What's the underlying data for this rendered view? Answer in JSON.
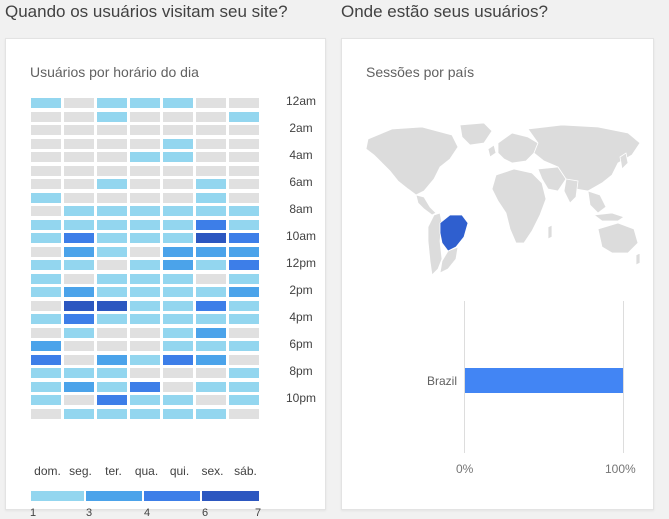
{
  "left_section": {
    "title": "Quando os usuários visitam seu site?",
    "card_title": "Usuários por horário do dia",
    "hour_labels": [
      "12am",
      "2am",
      "4am",
      "6am",
      "8am",
      "10am",
      "12pm",
      "2pm",
      "4pm",
      "6pm",
      "8pm",
      "10pm"
    ],
    "day_labels": [
      "dom.",
      "seg.",
      "ter.",
      "qua.",
      "qui.",
      "sex.",
      "sáb."
    ],
    "legend": [
      "1",
      "3",
      "4",
      "6",
      "7"
    ],
    "colors": {
      "empty": "#e0e0e0",
      "level1": "#93d6ef",
      "level2": "#4ba3ea",
      "level3": "#3d7ee8",
      "level4": "#2c57c0"
    }
  },
  "right_section": {
    "title": "Onde estão seus usuários?",
    "card_title": "Sessões por país",
    "bar_country": "Brazil",
    "x_ticks": [
      "0%",
      "100%"
    ],
    "highlight_color": "#2f5fcf",
    "land_color": "#dcdcdc"
  },
  "chart_data": [
    {
      "type": "heatmap",
      "title": "Usuários por horário do dia",
      "columns": [
        "dom.",
        "seg.",
        "ter.",
        "qua.",
        "qui.",
        "sex.",
        "sáb."
      ],
      "rows_hour_labels": [
        "12am",
        "2am",
        "4am",
        "6am",
        "8am",
        "10am",
        "12pm",
        "2pm",
        "4pm",
        "6pm",
        "8pm",
        "10pm"
      ],
      "rows_per_hour": 24,
      "legend_scale": [
        1,
        3,
        4,
        6,
        7
      ],
      "levels": [
        [
          1,
          0,
          1,
          1,
          1,
          0,
          0
        ],
        [
          0,
          0,
          1,
          0,
          0,
          0,
          1
        ],
        [
          0,
          0,
          0,
          0,
          0,
          0,
          0
        ],
        [
          0,
          0,
          0,
          0,
          1,
          0,
          0
        ],
        [
          0,
          0,
          0,
          1,
          1,
          0,
          0
        ],
        [
          0,
          0,
          0,
          0,
          0,
          0,
          0
        ],
        [
          0,
          0,
          1,
          0,
          0,
          1,
          0
        ],
        [
          1,
          0,
          0,
          0,
          0,
          1,
          0
        ],
        [
          0,
          1,
          1,
          1,
          1,
          1,
          1
        ],
        [
          1,
          1,
          1,
          1,
          1,
          3,
          1
        ],
        [
          1,
          3,
          1,
          1,
          1,
          4,
          3
        ],
        [
          0,
          2,
          1,
          0,
          2,
          2,
          2
        ],
        [
          1,
          1,
          0,
          1,
          2,
          1,
          3
        ],
        [
          1,
          0,
          1,
          1,
          1,
          0,
          1
        ],
        [
          1,
          2,
          1,
          1,
          1,
          1,
          2
        ],
        [
          0,
          4,
          4,
          1,
          1,
          3,
          1
        ],
        [
          1,
          3,
          1,
          1,
          1,
          1,
          1
        ],
        [
          0,
          1,
          0,
          0,
          1,
          2,
          0
        ],
        [
          2,
          0,
          0,
          0,
          1,
          1,
          1
        ],
        [
          3,
          0,
          2,
          1,
          3,
          2,
          0
        ],
        [
          1,
          1,
          1,
          0,
          0,
          0,
          1
        ],
        [
          1,
          2,
          1,
          3,
          0,
          1,
          1
        ],
        [
          1,
          0,
          3,
          1,
          1,
          0,
          1
        ],
        [
          0,
          1,
          1,
          1,
          1,
          1,
          0
        ]
      ]
    },
    {
      "type": "bar",
      "title": "Sessões por país",
      "categories": [
        "Brazil"
      ],
      "values": [
        100
      ],
      "x_ticks": [
        "0%",
        "100%"
      ],
      "xlim": [
        0,
        100
      ]
    }
  ]
}
